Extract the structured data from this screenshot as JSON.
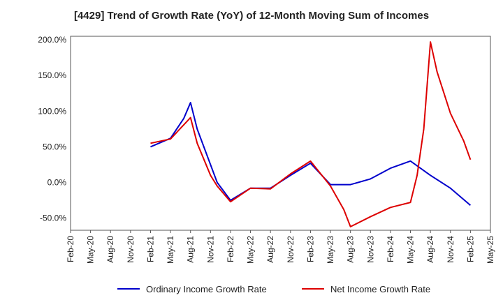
{
  "chart_data": {
    "type": "line",
    "title": "[4429]  Trend of Growth Rate (YoY) of 12-Month Moving Sum of Incomes",
    "xlabel": "",
    "ylabel": "",
    "x": [
      "Feb-20",
      "Mar-20",
      "Apr-20",
      "May-20",
      "Jun-20",
      "Jul-20",
      "Aug-20",
      "Sep-20",
      "Oct-20",
      "Nov-20",
      "Dec-20",
      "Jan-21",
      "Feb-21",
      "Mar-21",
      "Apr-21",
      "May-21",
      "Jun-21",
      "Jul-21",
      "Aug-21",
      "Sep-21",
      "Oct-21",
      "Nov-21",
      "Dec-21",
      "Jan-22",
      "Feb-22",
      "Mar-22",
      "Apr-22",
      "May-22",
      "Jun-22",
      "Jul-22",
      "Aug-22",
      "Sep-22",
      "Oct-22",
      "Nov-22",
      "Dec-22",
      "Jan-23",
      "Feb-23",
      "Mar-23",
      "Apr-23",
      "May-23",
      "Jun-23",
      "Jul-23",
      "Aug-23",
      "Sep-23",
      "Oct-23",
      "Nov-23",
      "Dec-23",
      "Jan-24",
      "Feb-24",
      "Mar-24",
      "Apr-24",
      "May-24",
      "Jun-24",
      "Jul-24",
      "Aug-24",
      "Sep-24",
      "Oct-24",
      "Nov-24",
      "Dec-24",
      "Jan-25",
      "Feb-25",
      "Mar-25",
      "Apr-25",
      "May-25"
    ],
    "x_tick_labels": [
      "Feb-20",
      "May-20",
      "Aug-20",
      "Nov-20",
      "Feb-21",
      "May-21",
      "Aug-21",
      "Nov-21",
      "Feb-22",
      "May-22",
      "Aug-22",
      "Nov-22",
      "Feb-23",
      "May-23",
      "Aug-23",
      "Nov-23",
      "Feb-24",
      "May-24",
      "Aug-24",
      "Nov-24",
      "Feb-25",
      "May-25"
    ],
    "y_tick_labels": [
      "200.0%",
      "150.0%",
      "100.0%",
      "50.0%",
      "0.0%",
      "-50.0%"
    ],
    "y_ticks": [
      200,
      150,
      100,
      50,
      0,
      -50
    ],
    "ylim": [
      -67,
      205
    ],
    "grid": true,
    "legend_position": "bottom",
    "series": [
      {
        "name": "Ordinary Income Growth Rate",
        "color": "#0000cc",
        "points": [
          [
            "Feb-21",
            50
          ],
          [
            "May-21",
            62
          ],
          [
            "Jul-21",
            90
          ],
          [
            "Aug-21",
            112
          ],
          [
            "Sep-21",
            75
          ],
          [
            "Nov-21",
            25
          ],
          [
            "Dec-21",
            0
          ],
          [
            "Feb-22",
            -25
          ],
          [
            "May-22",
            -8
          ],
          [
            "Aug-22",
            -8
          ],
          [
            "Nov-22",
            10
          ],
          [
            "Feb-23",
            27
          ],
          [
            "May-23",
            -3
          ],
          [
            "Aug-23",
            -3
          ],
          [
            "Nov-23",
            5
          ],
          [
            "Feb-24",
            20
          ],
          [
            "May-24",
            30
          ],
          [
            "Aug-24",
            10
          ],
          [
            "Nov-24",
            -8
          ],
          [
            "Feb-25",
            -32
          ]
        ]
      },
      {
        "name": "Net Income Growth Rate",
        "color": "#dd0000",
        "points": [
          [
            "Feb-21",
            55
          ],
          [
            "May-21",
            61
          ],
          [
            "Aug-21",
            91
          ],
          [
            "Sep-21",
            55
          ],
          [
            "Nov-21",
            10
          ],
          [
            "Dec-21",
            -5
          ],
          [
            "Feb-22",
            -27
          ],
          [
            "May-22",
            -8
          ],
          [
            "Aug-22",
            -9
          ],
          [
            "Nov-22",
            12
          ],
          [
            "Feb-23",
            30
          ],
          [
            "May-23",
            -5
          ],
          [
            "Jul-23",
            -38
          ],
          [
            "Aug-23",
            -62
          ],
          [
            "Nov-23",
            -48
          ],
          [
            "Feb-24",
            -35
          ],
          [
            "May-24",
            -28
          ],
          [
            "Jun-24",
            10
          ],
          [
            "Jul-24",
            75
          ],
          [
            "Aug-24",
            197
          ],
          [
            "Sep-24",
            155
          ],
          [
            "Nov-24",
            97
          ],
          [
            "Jan-25",
            58
          ],
          [
            "Feb-25",
            32
          ]
        ]
      }
    ]
  }
}
